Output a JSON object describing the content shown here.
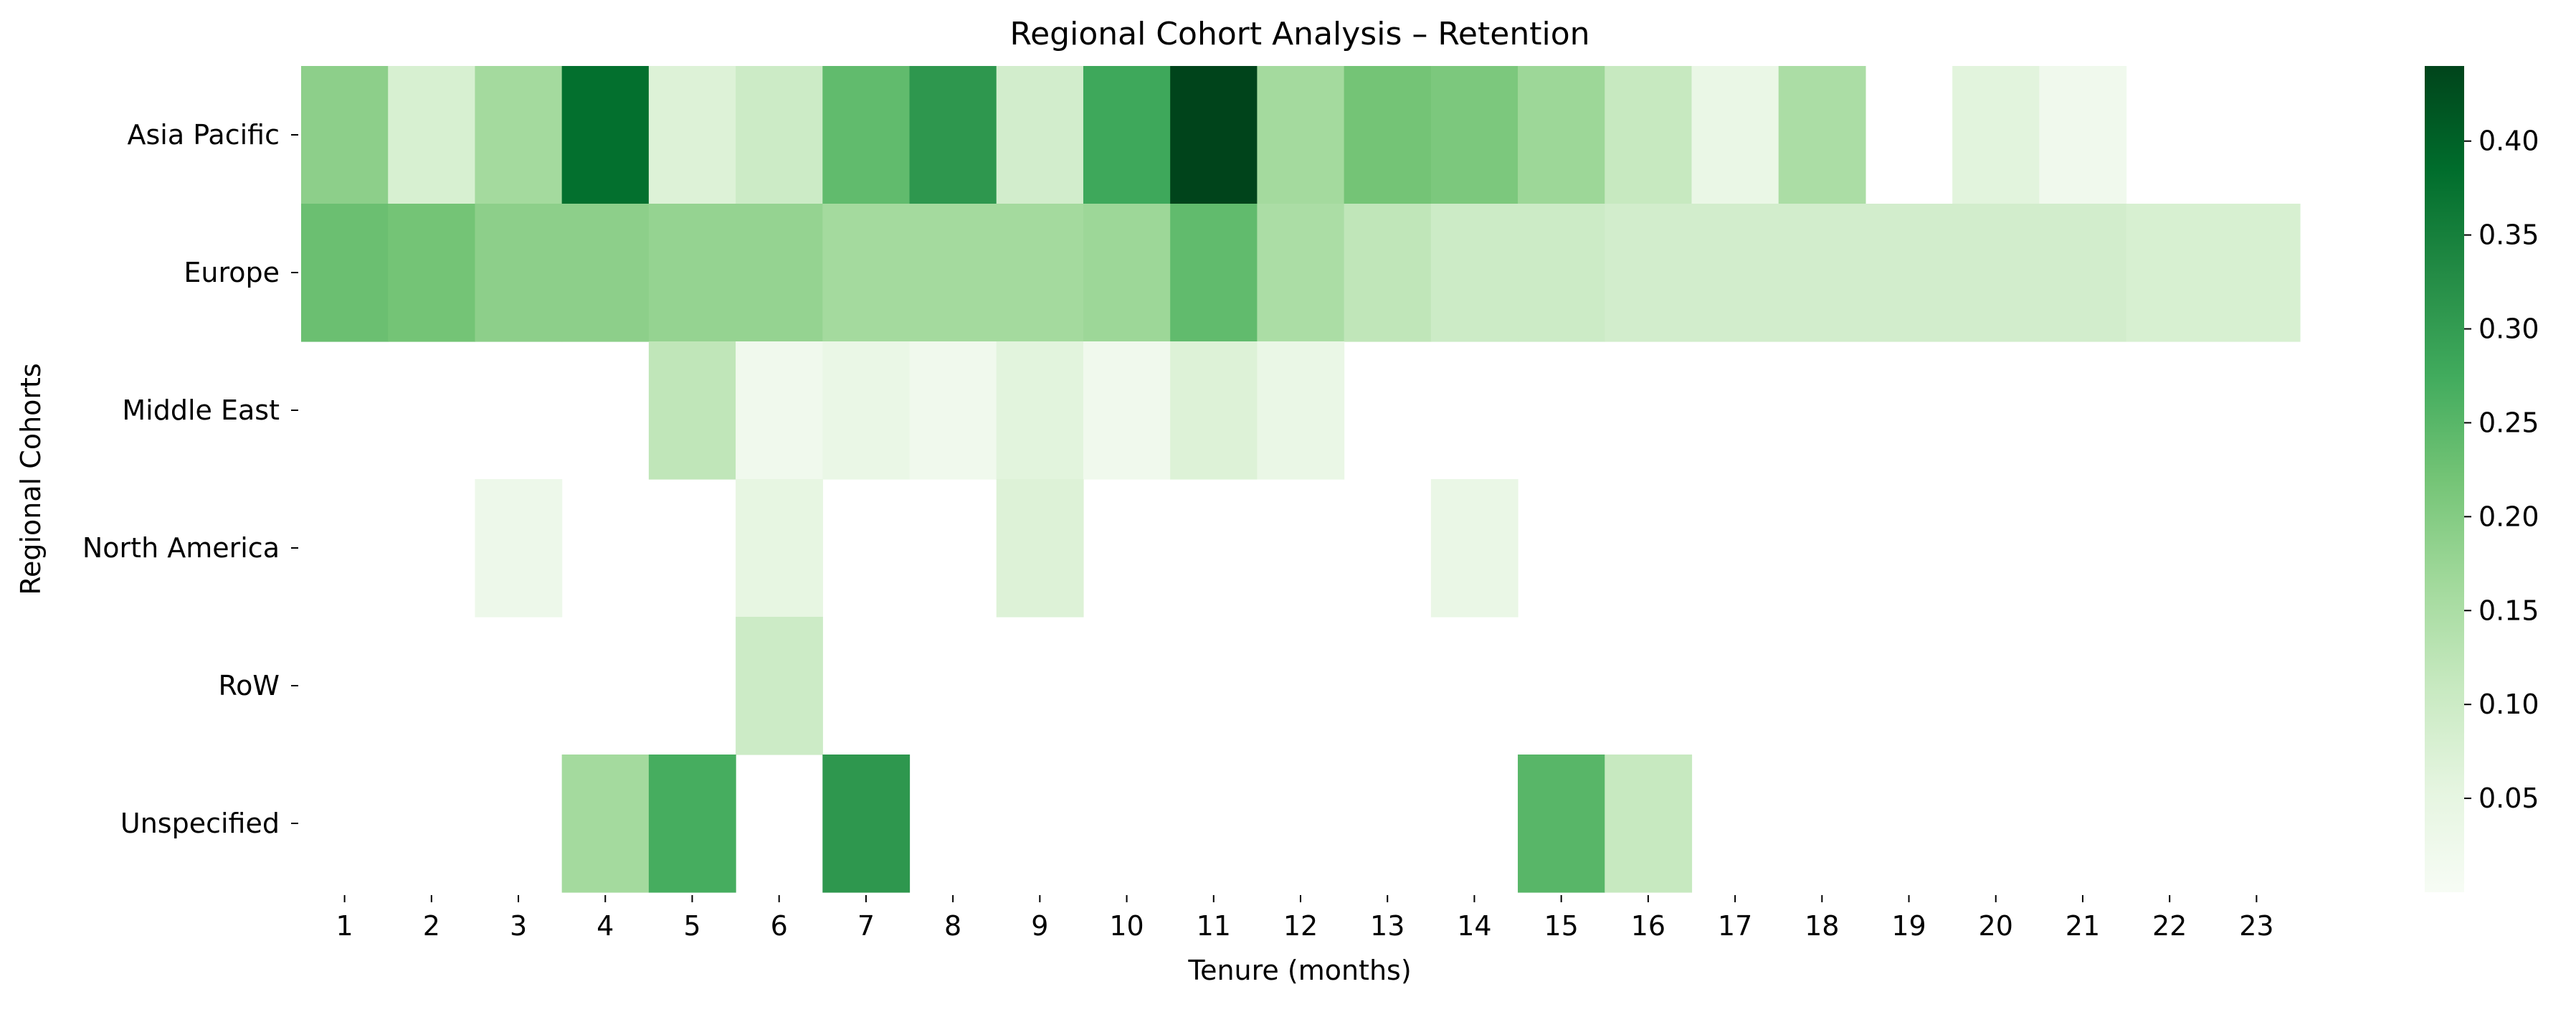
{
  "chart_data": {
    "type": "heatmap",
    "title": "Regional Cohort Analysis – Retention",
    "xlabel": "Tenure (months)",
    "ylabel": "Regional Cohorts",
    "x": [
      "1",
      "2",
      "3",
      "4",
      "5",
      "6",
      "7",
      "8",
      "9",
      "10",
      "11",
      "12",
      "13",
      "14",
      "15",
      "16",
      "17",
      "18",
      "19",
      "20",
      "21",
      "22",
      "23"
    ],
    "y": [
      "Asia Pacific",
      "Europe",
      "Middle East",
      "North America",
      "RoW",
      "Unspecified"
    ],
    "values": [
      [
        0.19,
        0.08,
        0.16,
        0.38,
        0.07,
        0.1,
        0.24,
        0.31,
        0.09,
        0.28,
        0.44,
        0.16,
        0.22,
        0.21,
        0.17,
        0.11,
        0.04,
        0.15,
        null,
        0.06,
        0.02,
        null,
        null
      ],
      [
        0.23,
        0.22,
        0.19,
        0.19,
        0.18,
        0.18,
        0.16,
        0.16,
        0.16,
        0.17,
        0.24,
        0.15,
        0.12,
        0.1,
        0.1,
        0.09,
        0.09,
        0.09,
        0.09,
        0.09,
        0.09,
        0.08,
        0.08
      ],
      [
        null,
        null,
        null,
        null,
        0.12,
        0.02,
        0.04,
        0.02,
        0.06,
        0.02,
        0.07,
        0.04,
        null,
        null,
        null,
        null,
        null,
        null,
        null,
        null,
        null,
        null,
        null
      ],
      [
        null,
        null,
        0.03,
        null,
        null,
        0.05,
        null,
        null,
        0.07,
        null,
        null,
        null,
        null,
        0.04,
        null,
        null,
        null,
        null,
        null,
        null,
        null,
        null,
        null
      ],
      [
        null,
        null,
        null,
        null,
        null,
        0.1,
        null,
        null,
        null,
        null,
        null,
        null,
        null,
        null,
        null,
        null,
        null,
        null,
        null,
        null,
        null,
        null,
        null
      ],
      [
        null,
        null,
        null,
        0.16,
        0.27,
        null,
        0.31,
        null,
        null,
        null,
        null,
        null,
        null,
        null,
        0.25,
        0.11,
        null,
        null,
        null,
        null,
        null,
        null,
        null
      ]
    ],
    "colorbar": {
      "colormap": "Greens",
      "range": [
        0.0,
        0.44
      ],
      "ticks": [
        "0.05",
        "0.10",
        "0.15",
        "0.20",
        "0.25",
        "0.30",
        "0.35",
        "0.40"
      ]
    },
    "grid": false,
    "legend": "colorbar-right"
  }
}
